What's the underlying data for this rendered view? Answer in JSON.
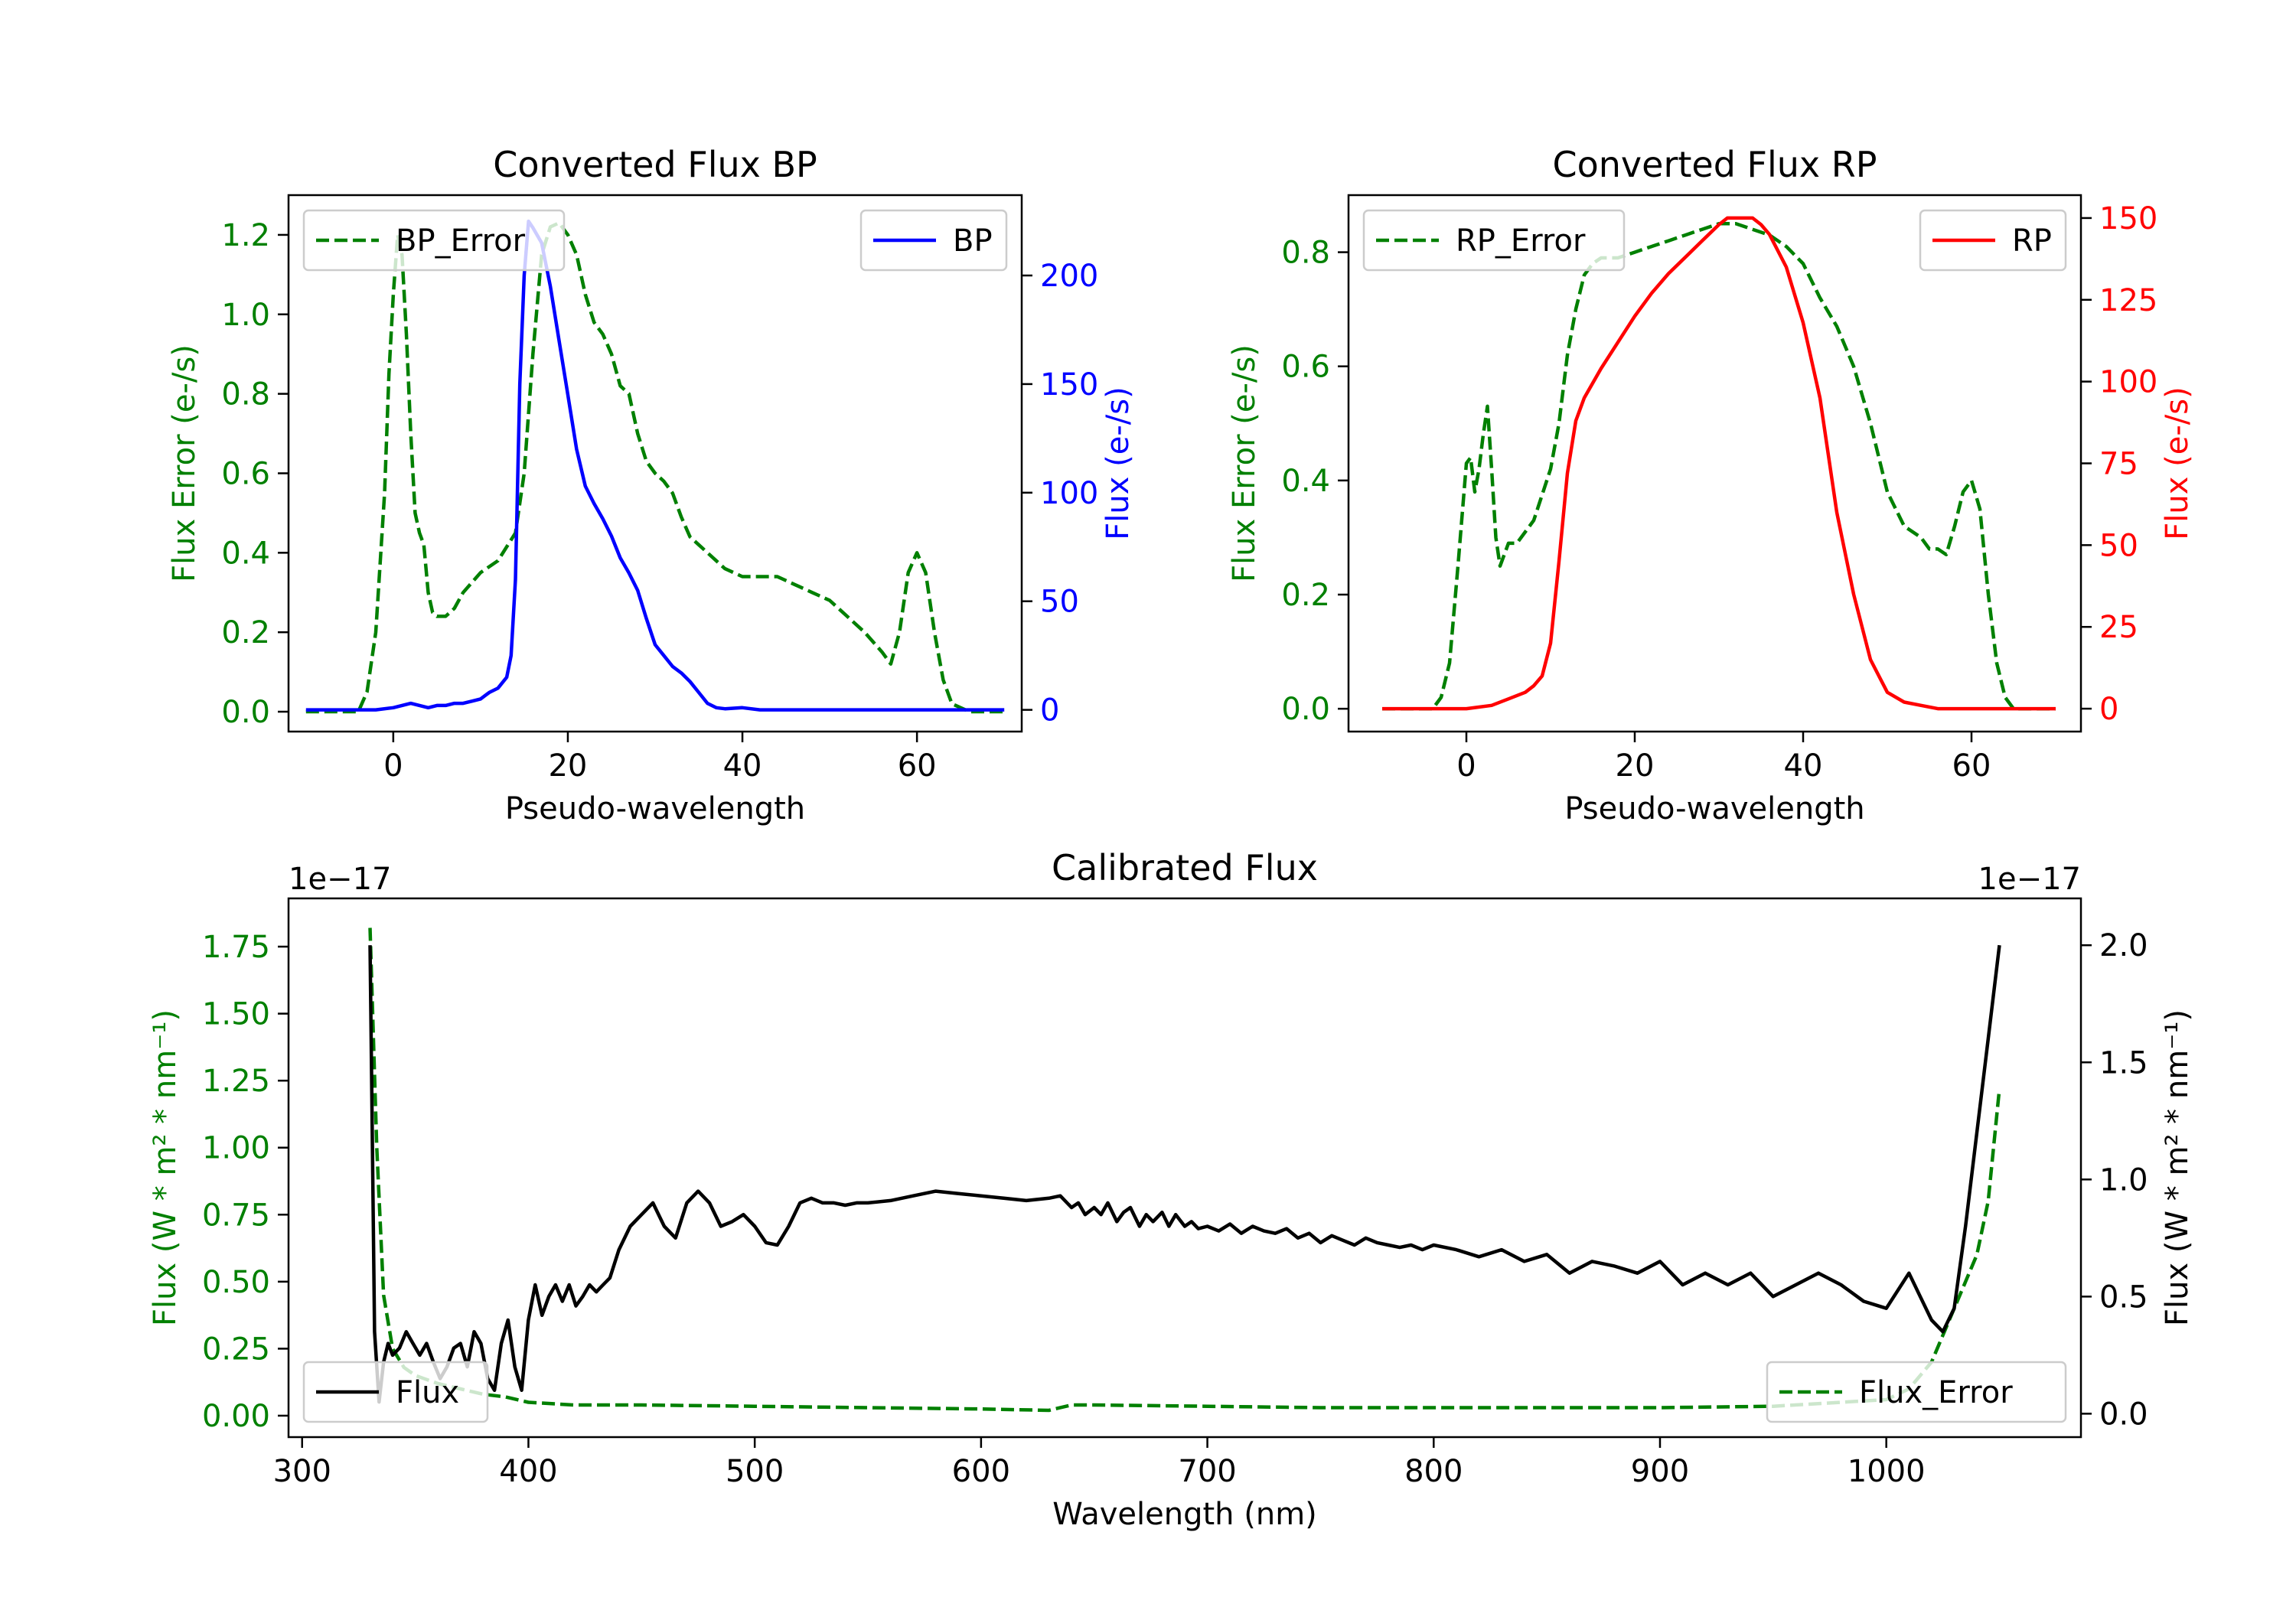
{
  "figure": {
    "background": "#ffffff"
  },
  "chart_data": [
    {
      "id": "bp",
      "type": "line",
      "title": "Converted Flux BP",
      "xlabel": "Pseudo-wavelength",
      "ylabel_left": "Flux Error (e-/s)",
      "ylabel_right": "Flux (e-/s)",
      "xlim": [
        -12,
        72
      ],
      "ylim_left": [
        -0.05,
        1.3
      ],
      "ylim_right": [
        -10,
        237
      ],
      "xticks": [
        0,
        20,
        40,
        60
      ],
      "yticks_left": [
        0.0,
        0.2,
        0.4,
        0.6,
        0.8,
        1.0,
        1.2
      ],
      "yticks_left_labels": [
        "0.0",
        "0.2",
        "0.4",
        "0.6",
        "0.8",
        "1.0",
        "1.2"
      ],
      "yticks_right": [
        0,
        50,
        100,
        150,
        200
      ],
      "yticks_right_labels": [
        "0",
        "50",
        "100",
        "150",
        "200"
      ],
      "left_color": "#008000",
      "right_color": "#0000ff",
      "legend_left": "BP_Error",
      "legend_right": "BP",
      "series_left": {
        "name": "BP_Error",
        "axis": "left",
        "style": "dashed",
        "color": "#008000",
        "x": [
          -10,
          -6,
          -4,
          -3,
          -2,
          -1,
          -0.5,
          0,
          0.5,
          1,
          1.5,
          2,
          2.5,
          3,
          3.5,
          4,
          4.5,
          5,
          6,
          7,
          8,
          10,
          12,
          14,
          15,
          16,
          17,
          18,
          19,
          20,
          21,
          22,
          23,
          24,
          25,
          26,
          27,
          28,
          29,
          30,
          31,
          32,
          33,
          34,
          35,
          36,
          38,
          40,
          42,
          44,
          46,
          48,
          50,
          52,
          54,
          56,
          57,
          58,
          59,
          60,
          61,
          62,
          63,
          64,
          66,
          70
        ],
        "y": [
          0,
          0,
          0,
          0.05,
          0.2,
          0.55,
          0.85,
          1.05,
          1.2,
          1.15,
          0.95,
          0.7,
          0.5,
          0.45,
          0.42,
          0.3,
          0.25,
          0.24,
          0.24,
          0.26,
          0.3,
          0.35,
          0.38,
          0.45,
          0.6,
          0.9,
          1.15,
          1.22,
          1.23,
          1.2,
          1.15,
          1.05,
          0.98,
          0.95,
          0.9,
          0.82,
          0.8,
          0.7,
          0.63,
          0.6,
          0.58,
          0.55,
          0.49,
          0.44,
          0.42,
          0.4,
          0.36,
          0.34,
          0.34,
          0.34,
          0.32,
          0.3,
          0.28,
          0.24,
          0.2,
          0.15,
          0.12,
          0.2,
          0.35,
          0.4,
          0.35,
          0.2,
          0.08,
          0.02,
          0,
          0
        ]
      },
      "series_right": {
        "name": "BP",
        "axis": "right",
        "style": "solid",
        "color": "#0000ff",
        "x": [
          -10,
          -5,
          -2,
          0,
          1,
          2,
          3,
          4,
          5,
          6,
          7,
          8,
          9,
          10,
          11,
          12,
          13,
          13.5,
          14,
          14.5,
          15,
          15.5,
          16,
          17,
          18,
          19,
          20,
          21,
          22,
          23,
          24,
          25,
          26,
          27,
          28,
          29,
          30,
          31,
          32,
          33,
          34,
          35,
          36,
          37,
          38,
          40,
          42,
          44,
          46,
          48,
          50,
          55,
          60,
          65,
          70
        ],
        "y": [
          0,
          0,
          0,
          1,
          2,
          3,
          2,
          1,
          2,
          2,
          3,
          3,
          4,
          5,
          8,
          10,
          15,
          25,
          60,
          150,
          200,
          225,
          222,
          215,
          195,
          170,
          145,
          120,
          103,
          95,
          88,
          80,
          70,
          63,
          55,
          42,
          30,
          25,
          20,
          17,
          13,
          8,
          3,
          1,
          0.5,
          1,
          0,
          0,
          0,
          0,
          0,
          0,
          0,
          0,
          0
        ]
      }
    },
    {
      "id": "rp",
      "type": "line",
      "title": "Converted Flux RP",
      "xlabel": "Pseudo-wavelength",
      "ylabel_left": "Flux Error (e-/s)",
      "ylabel_right": "Flux (e-/s)",
      "xlim": [
        -14,
        73
      ],
      "ylim_left": [
        -0.04,
        0.9
      ],
      "ylim_right": [
        -7,
        157
      ],
      "xticks": [
        0,
        20,
        40,
        60
      ],
      "yticks_left": [
        0.0,
        0.2,
        0.4,
        0.6,
        0.8
      ],
      "yticks_left_labels": [
        "0.0",
        "0.2",
        "0.4",
        "0.6",
        "0.8"
      ],
      "yticks_right": [
        0,
        25,
        50,
        75,
        100,
        125,
        150
      ],
      "yticks_right_labels": [
        "0",
        "25",
        "50",
        "75",
        "100",
        "125",
        "150"
      ],
      "left_color": "#008000",
      "right_color": "#ff0000",
      "legend_left": "RP_Error",
      "legend_right": "RP",
      "series_left": {
        "name": "RP_Error",
        "axis": "left",
        "style": "dashed",
        "color": "#008000",
        "x": [
          -10,
          -5,
          -4,
          -3,
          -2,
          -1,
          0,
          0.5,
          1,
          1.5,
          2,
          2.5,
          3,
          3.5,
          4,
          4.5,
          5,
          6,
          8,
          10,
          11,
          12,
          13,
          14,
          15,
          16,
          18,
          20,
          22,
          24,
          26,
          28,
          30,
          32,
          34,
          36,
          38,
          40,
          42,
          44,
          46,
          48,
          50,
          52,
          54,
          55,
          56,
          57,
          58,
          59,
          60,
          61,
          62,
          63,
          64,
          65,
          66,
          70
        ],
        "y": [
          0,
          0,
          0,
          0.02,
          0.08,
          0.25,
          0.43,
          0.44,
          0.38,
          0.42,
          0.48,
          0.53,
          0.42,
          0.3,
          0.25,
          0.27,
          0.29,
          0.29,
          0.33,
          0.42,
          0.5,
          0.62,
          0.7,
          0.76,
          0.78,
          0.79,
          0.79,
          0.8,
          0.81,
          0.82,
          0.83,
          0.84,
          0.85,
          0.85,
          0.84,
          0.83,
          0.81,
          0.78,
          0.72,
          0.67,
          0.6,
          0.5,
          0.38,
          0.32,
          0.3,
          0.28,
          0.28,
          0.27,
          0.32,
          0.38,
          0.4,
          0.35,
          0.2,
          0.08,
          0.02,
          0,
          0,
          0
        ]
      },
      "series_right": {
        "name": "RP",
        "axis": "right",
        "style": "solid",
        "color": "#ff0000",
        "x": [
          -10,
          -5,
          0,
          3,
          5,
          7,
          8,
          9,
          10,
          11,
          12,
          13,
          14,
          16,
          18,
          20,
          22,
          24,
          26,
          28,
          30,
          31,
          32,
          33,
          34,
          35,
          36,
          38,
          40,
          42,
          44,
          46,
          48,
          50,
          52,
          54,
          56,
          60,
          65,
          70
        ],
        "y": [
          0,
          0,
          0,
          1,
          3,
          5,
          7,
          10,
          20,
          45,
          72,
          88,
          95,
          104,
          112,
          120,
          127,
          133,
          138,
          143,
          148,
          150,
          150,
          150,
          150,
          148,
          145,
          135,
          118,
          95,
          60,
          35,
          15,
          5,
          2,
          1,
          0,
          0,
          0,
          0
        ]
      }
    },
    {
      "id": "calibrated",
      "type": "line",
      "title": "Calibrated Flux",
      "xlabel": "Wavelength (nm)",
      "ylabel_left": "Flux (W * m² * nm⁻¹)",
      "ylabel_right": "Flux (W * m² * nm⁻¹)",
      "offset_left": "1e−17",
      "offset_right": "1e−17",
      "xlim": [
        294,
        1086
      ],
      "ylim_left": [
        -0.08,
        1.93
      ],
      "ylim_right": [
        -0.1,
        2.2
      ],
      "xticks": [
        300,
        400,
        500,
        600,
        700,
        800,
        900,
        1000
      ],
      "yticks_left": [
        0.0,
        0.25,
        0.5,
        0.75,
        1.0,
        1.25,
        1.5,
        1.75
      ],
      "yticks_left_labels": [
        "0.00",
        "0.25",
        "0.50",
        "0.75",
        "1.00",
        "1.25",
        "1.50",
        "1.75"
      ],
      "yticks_right": [
        0.0,
        0.5,
        1.0,
        1.5,
        2.0
      ],
      "yticks_right_labels": [
        "0.0",
        "0.5",
        "1.0",
        "1.5",
        "2.0"
      ],
      "left_color": "#008000",
      "right_color": "#000000",
      "legend_left": "Flux",
      "legend_right": "Flux_Error",
      "legend_left_color": "#000000",
      "legend_left_style": "solid",
      "legend_right_color": "#008000",
      "legend_right_style": "dashed",
      "series_left": {
        "name": "Flux_Error",
        "axis": "left",
        "style": "dashed",
        "color": "#008000",
        "x": [
          330,
          333,
          336,
          340,
          345,
          350,
          360,
          370,
          380,
          390,
          400,
          420,
          450,
          500,
          550,
          600,
          630,
          640,
          650,
          700,
          750,
          800,
          850,
          900,
          950,
          1000,
          1010,
          1020,
          1025,
          1030,
          1035,
          1040,
          1045,
          1050
        ],
        "y": [
          1.82,
          1.0,
          0.45,
          0.25,
          0.18,
          0.15,
          0.12,
          0.1,
          0.08,
          0.07,
          0.05,
          0.04,
          0.04,
          0.035,
          0.03,
          0.025,
          0.02,
          0.04,
          0.04,
          0.035,
          0.03,
          0.03,
          0.03,
          0.03,
          0.035,
          0.06,
          0.1,
          0.2,
          0.3,
          0.4,
          0.5,
          0.6,
          0.8,
          1.22
        ]
      },
      "series_right": {
        "name": "Flux",
        "axis": "right",
        "style": "solid",
        "color": "#000000",
        "x": [
          330,
          331,
          332,
          334,
          336,
          338,
          340,
          343,
          346,
          349,
          352,
          355,
          358,
          361,
          364,
          367,
          370,
          373,
          376,
          379,
          382,
          385,
          388,
          391,
          394,
          397,
          400,
          403,
          406,
          409,
          412,
          415,
          418,
          421,
          424,
          427,
          430,
          433,
          436,
          440,
          445,
          450,
          455,
          460,
          465,
          470,
          475,
          480,
          485,
          490,
          495,
          500,
          505,
          510,
          515,
          520,
          525,
          530,
          535,
          540,
          545,
          550,
          560,
          570,
          580,
          590,
          600,
          610,
          620,
          630,
          635,
          640,
          643,
          646,
          650,
          653,
          656,
          660,
          663,
          666,
          670,
          673,
          676,
          680,
          683,
          686,
          690,
          693,
          696,
          700,
          705,
          710,
          715,
          720,
          725,
          730,
          735,
          740,
          745,
          750,
          755,
          760,
          765,
          770,
          775,
          780,
          785,
          790,
          795,
          800,
          810,
          820,
          830,
          840,
          850,
          860,
          870,
          880,
          890,
          900,
          910,
          920,
          930,
          940,
          950,
          960,
          970,
          980,
          990,
          1000,
          1010,
          1015,
          1020,
          1025,
          1030,
          1035,
          1040,
          1045,
          1050
        ],
        "y": [
          2.0,
          1.2,
          0.35,
          0.05,
          0.22,
          0.3,
          0.25,
          0.28,
          0.35,
          0.3,
          0.25,
          0.3,
          0.22,
          0.15,
          0.2,
          0.28,
          0.3,
          0.2,
          0.35,
          0.3,
          0.15,
          0.1,
          0.3,
          0.4,
          0.2,
          0.1,
          0.4,
          0.55,
          0.42,
          0.5,
          0.55,
          0.48,
          0.55,
          0.46,
          0.5,
          0.55,
          0.52,
          0.55,
          0.58,
          0.7,
          0.8,
          0.85,
          0.9,
          0.8,
          0.75,
          0.9,
          0.95,
          0.9,
          0.8,
          0.82,
          0.85,
          0.8,
          0.73,
          0.72,
          0.8,
          0.9,
          0.92,
          0.9,
          0.9,
          0.89,
          0.9,
          0.9,
          0.91,
          0.93,
          0.95,
          0.94,
          0.93,
          0.92,
          0.91,
          0.92,
          0.93,
          0.88,
          0.9,
          0.85,
          0.88,
          0.85,
          0.9,
          0.82,
          0.86,
          0.88,
          0.8,
          0.85,
          0.82,
          0.86,
          0.8,
          0.85,
          0.8,
          0.82,
          0.79,
          0.8,
          0.78,
          0.81,
          0.77,
          0.8,
          0.78,
          0.77,
          0.79,
          0.75,
          0.77,
          0.73,
          0.76,
          0.74,
          0.72,
          0.75,
          0.73,
          0.72,
          0.71,
          0.72,
          0.7,
          0.72,
          0.7,
          0.67,
          0.7,
          0.65,
          0.68,
          0.6,
          0.65,
          0.63,
          0.6,
          0.65,
          0.55,
          0.6,
          0.55,
          0.6,
          0.5,
          0.55,
          0.6,
          0.55,
          0.48,
          0.45,
          0.6,
          0.5,
          0.4,
          0.35,
          0.45,
          0.8,
          1.2,
          1.6,
          2.0
        ]
      }
    }
  ]
}
